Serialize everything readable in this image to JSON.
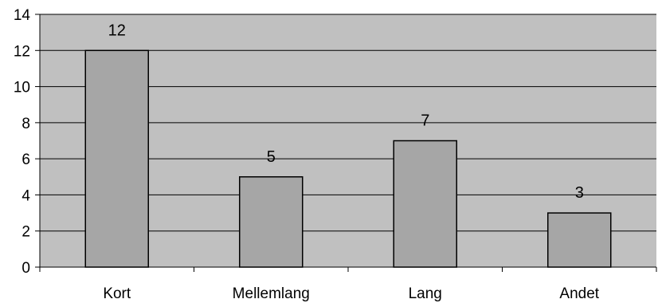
{
  "chart_data": {
    "type": "bar",
    "categories": [
      "Kort",
      "Mellemlang",
      "Lang",
      "Andet"
    ],
    "values": [
      12,
      5,
      7,
      3
    ],
    "data_labels": [
      "12",
      "5",
      "7",
      "3"
    ],
    "y_ticks": [
      "0",
      "2",
      "4",
      "6",
      "8",
      "10",
      "12",
      "14"
    ],
    "ylim": [
      0,
      14
    ],
    "grid": true,
    "legend": "none",
    "colors": {
      "plot_background": "#c0c0c0",
      "bar_fill": "#a6a6a6",
      "bar_stroke": "#000000",
      "gridline": "#000000",
      "axis": "#000000"
    }
  }
}
